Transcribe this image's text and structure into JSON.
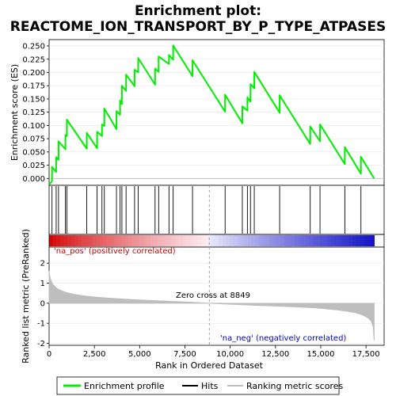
{
  "title_line1": "Enrichment plot:",
  "title_line2": "REACTOME_ION_TRANSPORT_BY_P_TYPE_ATPASES",
  "annotations": {
    "pos": "'na_pos' (positively correlated)",
    "neg": "'na_neg' (negatively correlated)",
    "zero_cross": "Zero cross at 8849"
  },
  "legend": {
    "enrichment": "Enrichment profile",
    "hits": "Hits",
    "ranking": "Ranking metric scores"
  },
  "colors": {
    "enrichment": "#00ee00",
    "hits": "#000000",
    "ranking": "#bebebe",
    "pos_band": "#ff0000",
    "neg_band": "#0000ff",
    "zero_line": "#a0a0a0"
  },
  "chart_data": [
    {
      "type": "line",
      "ylabel": "Enrichment score (ES)",
      "xlim": [
        0,
        18500
      ],
      "ylim": [
        -0.013,
        0.262
      ],
      "yticks": [
        "0.000",
        "0.025",
        "0.050",
        "0.075",
        "0.100",
        "0.125",
        "0.150",
        "0.175",
        "0.200",
        "0.225",
        "0.250"
      ],
      "series": [
        {
          "x": [
            0,
            160,
            160,
            390,
            390,
            520,
            520,
            900,
            900,
            980,
            980,
            2080,
            2080,
            2650,
            2650,
            2920,
            2920,
            3050,
            3050,
            3720,
            3720,
            3920,
            3920,
            4020,
            4020,
            4250,
            4250,
            4720,
            4720,
            4920,
            4920,
            5850,
            5850,
            6050,
            6050,
            6620,
            6620,
            6850,
            6850,
            7920,
            7920,
            9720,
            9720,
            10670,
            10670,
            10950,
            10950,
            11120,
            11120,
            11330,
            11330,
            12730,
            12730,
            14420,
            14420,
            14960,
            14960,
            16330,
            16330,
            17220,
            17220,
            17950
          ],
          "y": [
            -0.012,
            -0.005,
            0.022,
            0.012,
            0.04,
            0.035,
            0.07,
            0.055,
            0.082,
            0.08,
            0.111,
            0.056,
            0.086,
            0.057,
            0.088,
            0.08,
            0.102,
            0.099,
            0.132,
            0.093,
            0.127,
            0.12,
            0.147,
            0.14,
            0.175,
            0.165,
            0.196,
            0.174,
            0.205,
            0.2,
            0.227,
            0.177,
            0.207,
            0.201,
            0.23,
            0.216,
            0.233,
            0.224,
            0.251,
            0.193,
            0.223,
            0.126,
            0.158,
            0.104,
            0.136,
            0.128,
            0.153,
            0.145,
            0.178,
            0.17,
            0.201,
            0.124,
            0.157,
            0.065,
            0.098,
            0.07,
            0.102,
            0.027,
            0.059,
            0.009,
            0.041,
            0.0
          ]
        }
      ]
    },
    {
      "type": "scatter",
      "hits_x": [
        160,
        390,
        520,
        900,
        980,
        2080,
        2650,
        2920,
        3050,
        3720,
        3920,
        4020,
        4250,
        4720,
        4920,
        5850,
        6050,
        6620,
        6850,
        7920,
        9720,
        10670,
        10950,
        11120,
        11330,
        12730,
        14420,
        14960,
        16330,
        17220
      ]
    },
    {
      "type": "area",
      "xlabel": "Rank in Ordered Dataset",
      "ylabel": "Ranked list metric (PreRanked)",
      "xlim": [
        0,
        18500
      ],
      "ylim": [
        -2.1,
        2.8
      ],
      "xticks": [
        "0",
        "2,500",
        "5,000",
        "7,500",
        "10,000",
        "12,500",
        "15,000",
        "17,500"
      ],
      "yticks": [
        "-2",
        "-1",
        "0",
        "1",
        "2"
      ],
      "zero_cross": 8849,
      "x": [
        0,
        40,
        100,
        200,
        350,
        500,
        750,
        1000,
        1400,
        1900,
        2500,
        3200,
        4000,
        5000,
        6000,
        7000,
        8000,
        8849,
        9500,
        10500,
        11500,
        12500,
        13500,
        14500,
        15200,
        15800,
        16400,
        16900,
        17300,
        17600,
        17800,
        17900,
        17950
      ],
      "values": [
        1.6,
        1.35,
        1.15,
        0.95,
        0.8,
        0.7,
        0.6,
        0.52,
        0.44,
        0.37,
        0.31,
        0.26,
        0.21,
        0.16,
        0.12,
        0.08,
        0.04,
        0.0,
        -0.03,
        -0.07,
        -0.11,
        -0.14,
        -0.18,
        -0.22,
        -0.27,
        -0.32,
        -0.39,
        -0.47,
        -0.58,
        -0.72,
        -0.9,
        -1.2,
        -1.85
      ]
    }
  ]
}
